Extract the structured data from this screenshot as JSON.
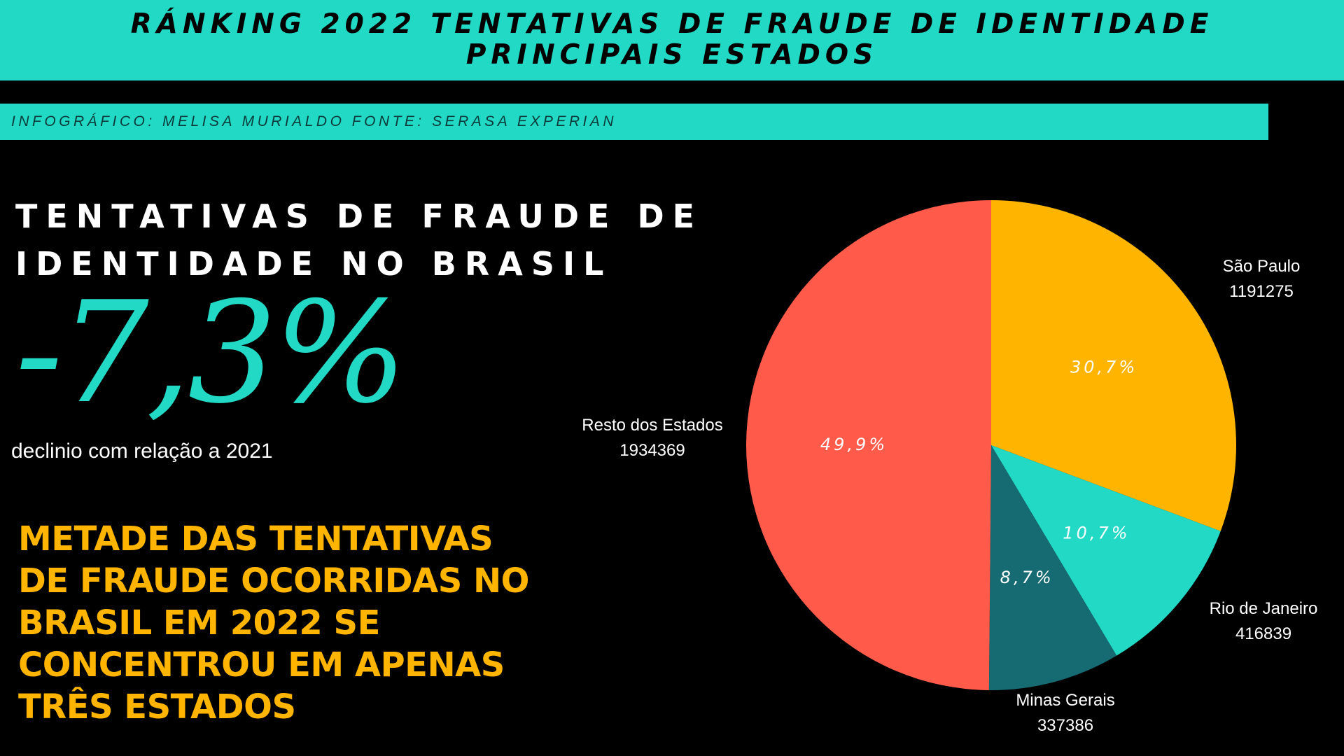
{
  "header": {
    "title_line1": "RÁNKING 2022 TENTATIVAS DE FRAUDE DE IDENTIDADE",
    "title_line2": "PRINCIPAIS ESTADOS"
  },
  "credit": "INFOGRÁFICO: MELISA MURIALDO FONTE: SERASA EXPERIAN",
  "headline": {
    "line1": "TENTATIVAS DE FRAUDE DE",
    "line2": "IDENTIDADE NO BRASIL"
  },
  "big_number": "-7,3%",
  "decline_text": "declinio com relação a 2021",
  "callout": {
    "lines": [
      "METADE DAS TENTATIVAS",
      "DE FRAUDE OCORRIDAS NO",
      "BRASIL EM 2022 SE",
      "CONCENTROU EM APENAS",
      "TRÊS ESTADOS"
    ]
  },
  "colors": {
    "accent": "#22d9c6",
    "yellow": "#ffb400",
    "background": "#000000"
  },
  "chart_data": {
    "type": "pie",
    "slices": [
      {
        "name": "São Paulo",
        "value": 1191275,
        "percent_label": "30,7%",
        "color": "#ffb400"
      },
      {
        "name": "Rio de Janeiro",
        "value": 416839,
        "percent_label": "10,7%",
        "color": "#22d9c6"
      },
      {
        "name": "Minas Gerais",
        "value": 337386,
        "percent_label": "8,7%",
        "color": "#166b73"
      },
      {
        "name": "Resto dos Estados",
        "value": 1934369,
        "percent_label": "49,9%",
        "color": "#ff5a4a"
      }
    ]
  }
}
